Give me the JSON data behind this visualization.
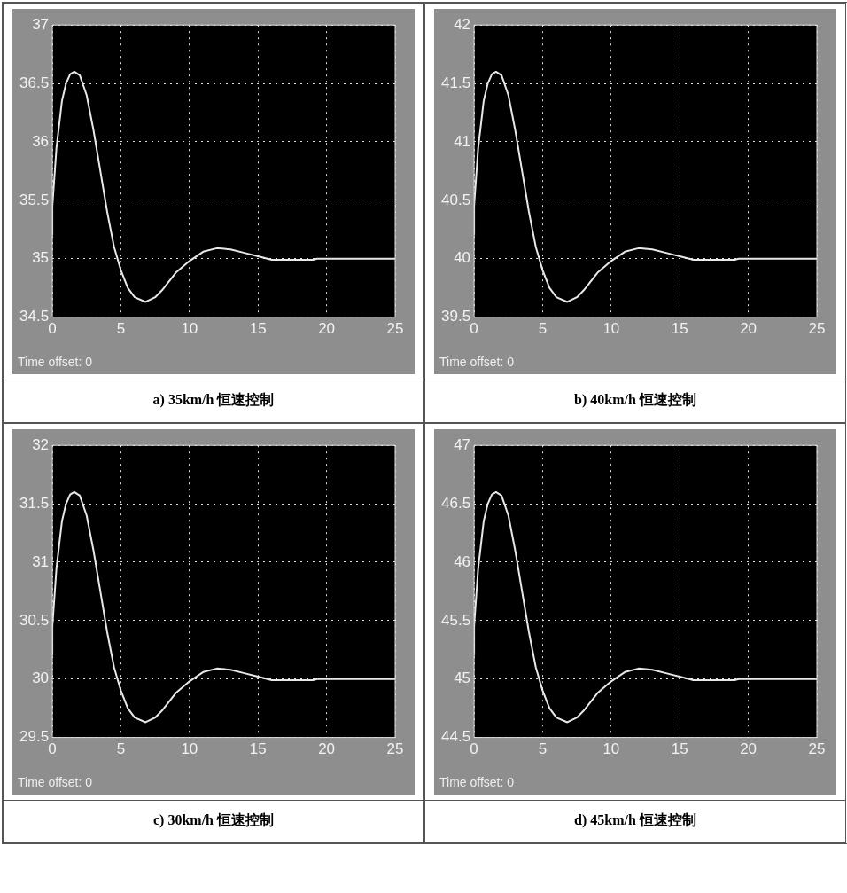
{
  "chart_data": [
    {
      "type": "line",
      "title": "a)   35km/h 恒速控制",
      "annotations": [
        "Time offset:  0"
      ],
      "x": [
        0,
        0,
        0.3,
        0.7,
        1,
        1.3,
        1.6,
        2,
        2.5,
        3,
        3.5,
        4,
        4.5,
        5,
        5.5,
        6,
        6.8,
        7.5,
        8,
        9,
        10,
        11,
        12,
        13,
        14,
        15,
        16,
        19,
        19.3,
        25
      ],
      "values": [
        35.2,
        35.45,
        35.95,
        36.35,
        36.5,
        36.58,
        36.6,
        36.57,
        36.4,
        36.1,
        35.75,
        35.4,
        35.1,
        34.9,
        34.75,
        34.67,
        34.63,
        34.67,
        34.73,
        34.88,
        34.98,
        35.06,
        35.09,
        35.08,
        35.05,
        35.02,
        34.99,
        34.99,
        35,
        35
      ],
      "color": "#e8e8e8",
      "xlim": [
        0,
        25
      ],
      "ylim": [
        34.5,
        37
      ],
      "xticks": [
        0,
        5,
        10,
        15,
        20,
        25
      ],
      "yticks": [
        34.5,
        35,
        35.5,
        36,
        36.5,
        37
      ],
      "grid": true
    },
    {
      "type": "line",
      "title": "b)   40km/h 恒速控制",
      "annotations": [
        "Time offset:  0"
      ],
      "x": [
        0,
        0,
        0.3,
        0.7,
        1,
        1.3,
        1.6,
        2,
        2.5,
        3,
        3.5,
        4,
        4.5,
        5,
        5.5,
        6,
        6.8,
        7.5,
        8,
        9,
        10,
        11,
        12,
        13,
        14,
        15,
        16,
        19,
        19.3,
        25
      ],
      "values": [
        40.2,
        40.45,
        40.95,
        41.35,
        41.5,
        41.58,
        41.6,
        41.57,
        41.4,
        41.1,
        40.75,
        40.4,
        40.1,
        39.9,
        39.75,
        39.67,
        39.63,
        39.67,
        39.73,
        39.88,
        39.98,
        40.06,
        40.09,
        40.08,
        40.05,
        40.02,
        39.99,
        39.99,
        40,
        40
      ],
      "color": "#e8e8e8",
      "xlim": [
        0,
        25
      ],
      "ylim": [
        39.5,
        42
      ],
      "xticks": [
        0,
        5,
        10,
        15,
        20,
        25
      ],
      "yticks": [
        39.5,
        40,
        40.5,
        41,
        41.5,
        42
      ],
      "grid": true
    },
    {
      "type": "line",
      "title": "c)   30km/h 恒速控制",
      "annotations": [
        "Time offset:  0"
      ],
      "x": [
        0,
        0,
        0.3,
        0.7,
        1,
        1.3,
        1.6,
        2,
        2.5,
        3,
        3.5,
        4,
        4.5,
        5,
        5.5,
        6,
        6.8,
        7.5,
        8,
        9,
        10,
        11,
        12,
        13,
        14,
        15,
        16,
        19,
        19.3,
        25
      ],
      "values": [
        30.2,
        30.45,
        30.95,
        31.35,
        31.5,
        31.58,
        31.6,
        31.57,
        31.4,
        31.1,
        30.75,
        30.4,
        30.1,
        29.9,
        29.75,
        29.67,
        29.63,
        29.67,
        29.73,
        29.88,
        29.98,
        30.06,
        30.09,
        30.08,
        30.05,
        30.02,
        29.99,
        29.99,
        30,
        30
      ],
      "color": "#e8e8e8",
      "xlim": [
        0,
        25
      ],
      "ylim": [
        29.5,
        32
      ],
      "xticks": [
        0,
        5,
        10,
        15,
        20,
        25
      ],
      "yticks": [
        29.5,
        30,
        30.5,
        31,
        31.5,
        32
      ],
      "grid": true
    },
    {
      "type": "line",
      "title": "d)   45km/h 恒速控制",
      "annotations": [
        "Time offset:  0"
      ],
      "x": [
        0,
        0,
        0.3,
        0.7,
        1,
        1.3,
        1.6,
        2,
        2.5,
        3,
        3.5,
        4,
        4.5,
        5,
        5.5,
        6,
        6.8,
        7.5,
        8,
        9,
        10,
        11,
        12,
        13,
        14,
        15,
        16,
        19,
        19.3,
        25
      ],
      "values": [
        45.2,
        45.45,
        45.95,
        46.35,
        46.5,
        46.58,
        46.6,
        46.57,
        46.4,
        46.1,
        45.75,
        45.4,
        45.1,
        44.9,
        44.75,
        44.67,
        44.63,
        44.67,
        44.73,
        44.88,
        44.98,
        45.06,
        45.09,
        45.08,
        45.05,
        45.02,
        44.99,
        44.99,
        45,
        45
      ],
      "color": "#e8e8e8",
      "xlim": [
        0,
        25
      ],
      "ylim": [
        44.5,
        47
      ],
      "xticks": [
        0,
        5,
        10,
        15,
        20,
        25
      ],
      "yticks": [
        44.5,
        45,
        45.5,
        46,
        46.5,
        47
      ],
      "grid": true
    }
  ]
}
